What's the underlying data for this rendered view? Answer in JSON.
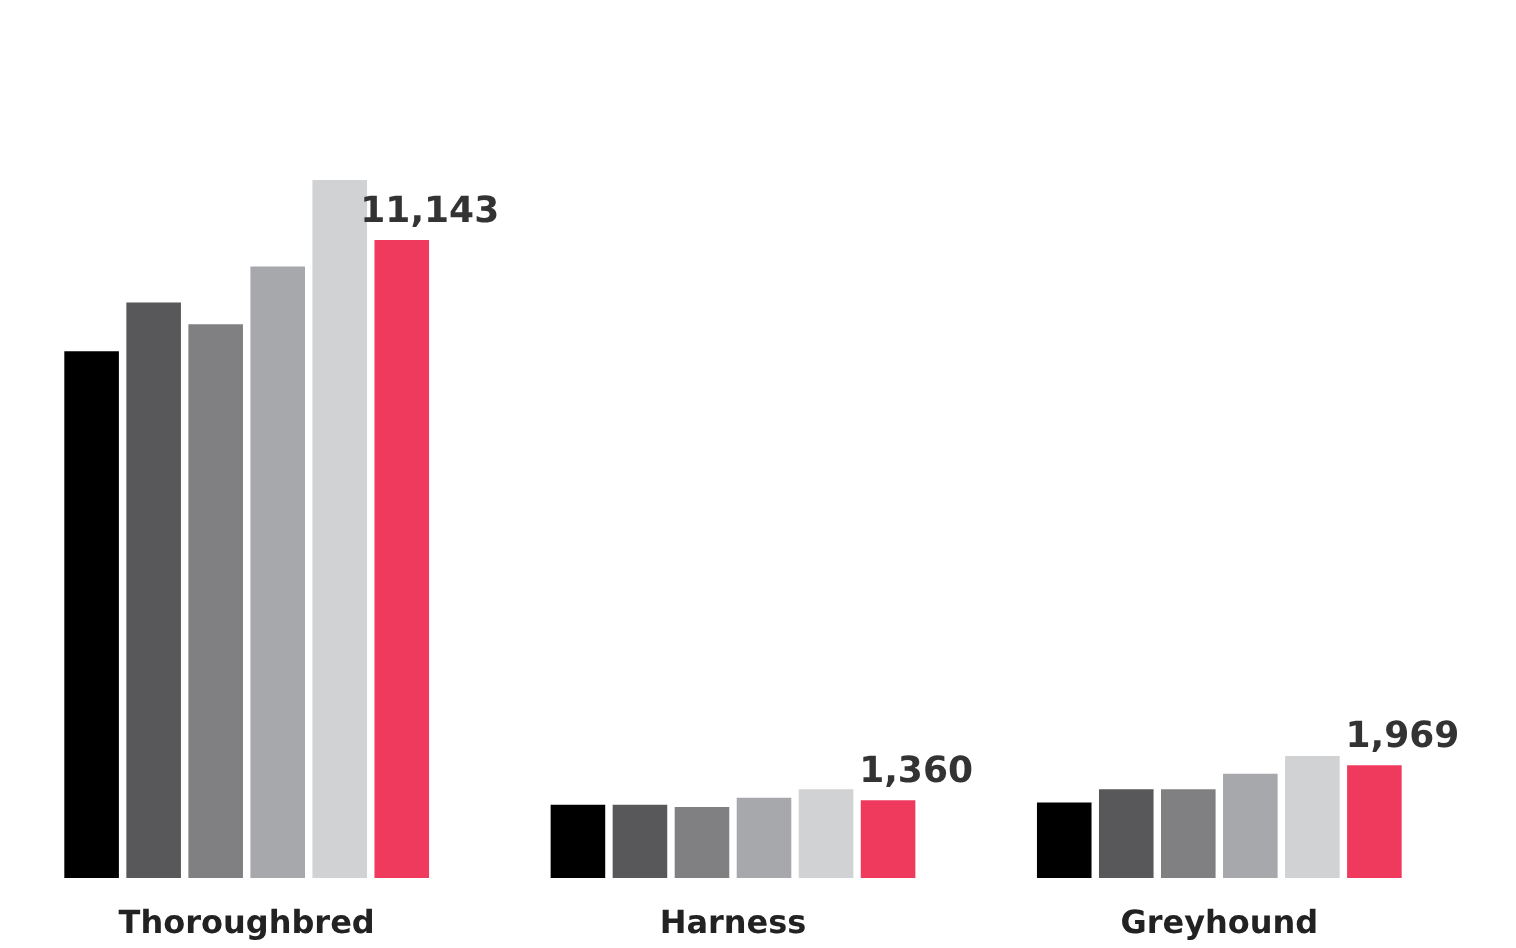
{
  "chart_data": {
    "type": "bar",
    "categories": [
      "Thoroughbred",
      "Harness",
      "Greyhound"
    ],
    "series": [
      {
        "color": "#000000",
        "values": [
          9200,
          1280,
          1320
        ]
      },
      {
        "color": "#58585a",
        "values": [
          10050,
          1280,
          1550
        ]
      },
      {
        "color": "#808083",
        "values": [
          9670,
          1240,
          1550
        ]
      },
      {
        "color": "#a7a8ab",
        "values": [
          10680,
          1400,
          1820
        ]
      },
      {
        "color": "#d1d2d4",
        "values": [
          12190,
          1550,
          2130
        ]
      },
      {
        "color": "#ef3a5d",
        "values": [
          11143,
          1360,
          1969
        ],
        "value_labels": [
          "11,143",
          "1,360",
          "1,969"
        ]
      }
    ],
    "tick_labels": "x",
    "grid": false,
    "legend": false
  }
}
